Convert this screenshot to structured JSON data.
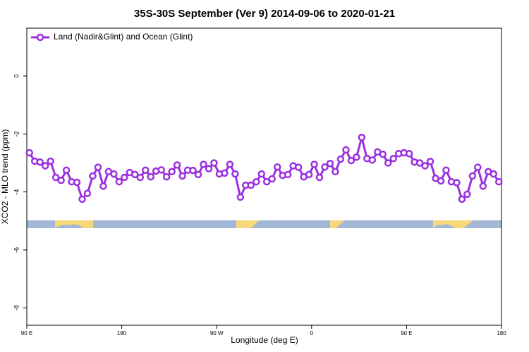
{
  "chart_data": {
    "type": "line",
    "title": "35S-30S September (Ver 9)   2014-09-06 to 2020-01-21",
    "x_label": "Longitude (deg E)",
    "y_label": "XCO2 - MLO trend (ppm)",
    "legend_position": "top-left",
    "xlim": [
      90,
      540
    ],
    "xticks": [
      {
        "value": 90,
        "label": "90 E"
      },
      {
        "value": 180,
        "label": "180"
      },
      {
        "value": 270,
        "label": "90 W"
      },
      {
        "value": 360,
        "label": "0"
      },
      {
        "value": 450,
        "label": "90 E"
      },
      {
        "value": 540,
        "label": "180"
      }
    ],
    "ylim": [
      -8.6,
      1.65
    ],
    "yticks": [
      -8,
      -6,
      -4,
      -2,
      0
    ],
    "x": [
      92.5,
      97.5,
      102.5,
      107.5,
      112.5,
      117.5,
      122.5,
      127.5,
      132.5,
      137.5,
      142.5,
      147.5,
      152.5,
      157.5,
      162.5,
      167.5,
      172.5,
      177.5,
      182.5,
      187.5,
      192.5,
      197.5,
      202.5,
      207.5,
      212.5,
      217.5,
      222.5,
      227.5,
      232.5,
      237.5,
      242.5,
      247.5,
      252.5,
      257.5,
      262.5,
      267.5,
      272.5,
      277.5,
      282.5,
      287.5,
      292.5,
      297.5,
      302.5,
      307.5,
      312.5,
      317.5,
      322.5,
      327.5,
      332.5,
      337.5,
      342.5,
      347.5,
      352.5,
      357.5,
      362.5,
      367.5,
      372.5,
      377.5,
      382.5,
      387.5,
      392.5,
      397.5,
      402.5,
      407.5,
      412.5,
      417.5,
      422.5,
      427.5,
      432.5,
      437.5,
      442.5,
      447.5,
      452.5,
      457.5,
      462.5,
      467.5,
      472.5,
      477.5,
      482.5,
      487.5,
      492.5,
      497.5,
      502.5,
      507.5,
      512.5,
      517.5,
      522.5,
      527.5,
      532.5,
      537.5
    ],
    "series": [
      {
        "name": "Land (Nadir&Glint) and Ocean (Glint)",
        "color": "#9b30e0",
        "values": [
          -2.65,
          -2.94,
          -2.97,
          -3.1,
          -2.94,
          -3.5,
          -3.6,
          -3.25,
          -3.65,
          -3.67,
          -4.25,
          -4.05,
          -3.45,
          -3.15,
          -3.8,
          -3.3,
          -3.38,
          -3.65,
          -3.5,
          -3.33,
          -3.4,
          -3.5,
          -3.25,
          -3.48,
          -3.28,
          -3.24,
          -3.48,
          -3.3,
          -3.07,
          -3.45,
          -3.25,
          -3.26,
          -3.4,
          -3.05,
          -3.2,
          -3.0,
          -3.38,
          -3.35,
          -3.05,
          -3.38,
          -4.18,
          -3.77,
          -3.77,
          -3.65,
          -3.38,
          -3.65,
          -3.55,
          -3.14,
          -3.43,
          -3.4,
          -3.1,
          -3.15,
          -3.48,
          -3.4,
          -3.05,
          -3.5,
          -3.14,
          -3.02,
          -3.3,
          -2.87,
          -2.55,
          -2.92,
          -2.8,
          -2.12,
          -2.85,
          -2.9,
          -2.62,
          -2.7,
          -3.0,
          -2.85,
          -2.68,
          -2.65,
          -2.68,
          -2.97,
          -3.0,
          -3.1,
          -2.95,
          -3.53,
          -3.62,
          -3.25,
          -3.65,
          -3.68,
          -4.25,
          -4.08,
          -3.45,
          -3.15,
          -3.8,
          -3.3,
          -3.38,
          -3.65
        ]
      }
    ]
  }
}
